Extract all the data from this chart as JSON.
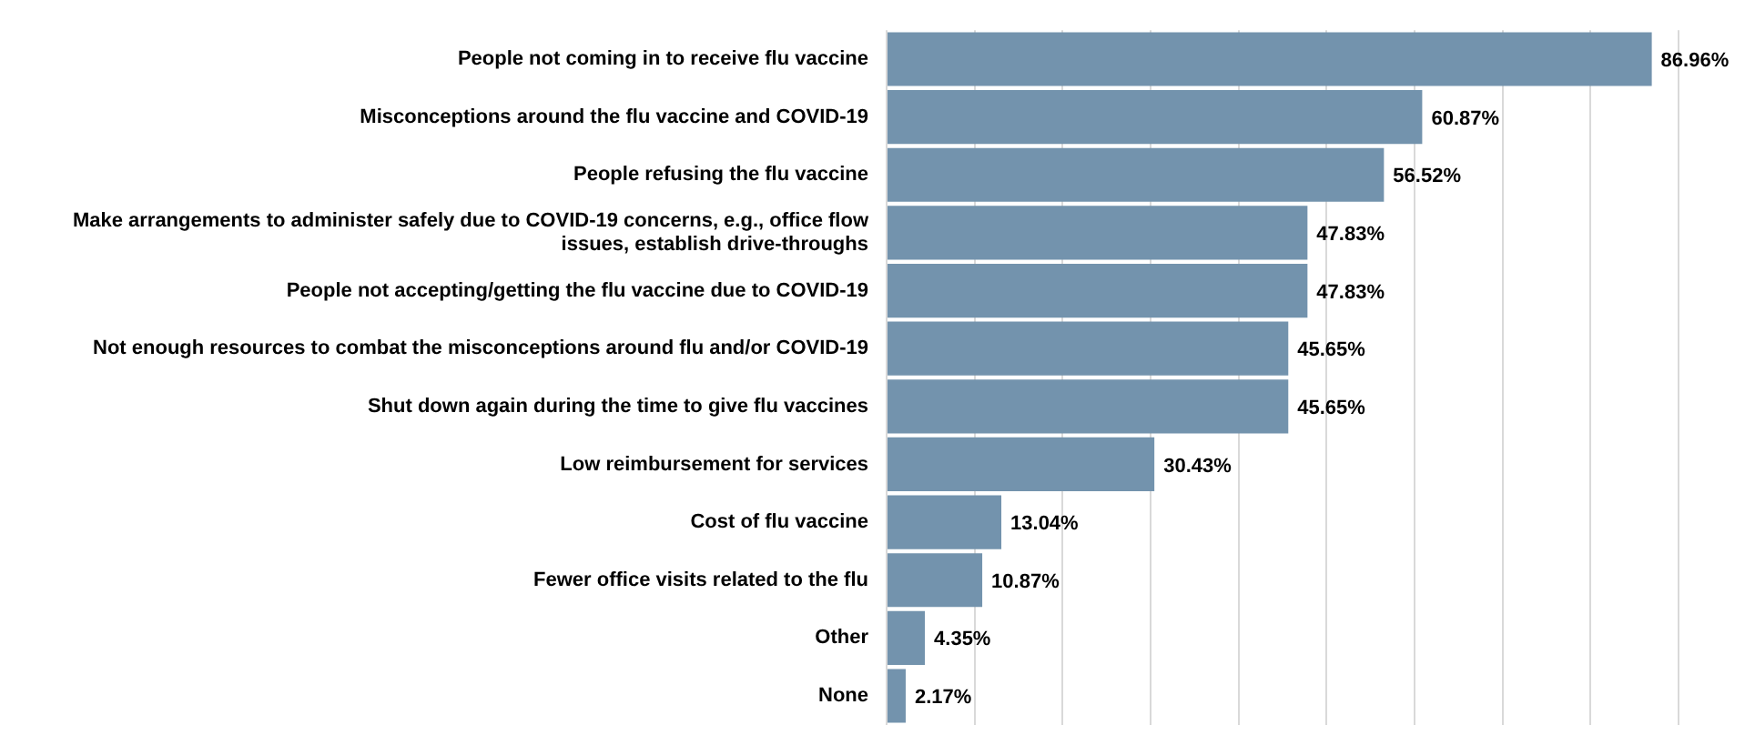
{
  "chart_data": {
    "type": "bar",
    "orientation": "horizontal",
    "categories": [
      "People not coming in to receive flu vaccine",
      "Misconceptions around the flu vaccine and COVID-19",
      "People refusing the flu vaccine",
      "Make arrangements to administer safely due to COVID-19 concerns, e.g., office flow issues, establish drive-throughs",
      "People not accepting/getting the flu vaccine due to COVID-19",
      "Not enough resources to combat the misconceptions around flu and/or COVID-19",
      "Shut down again during the time to give flu vaccines",
      "Low reimbursement for services",
      "Cost of flu vaccine",
      "Fewer office visits related to the flu",
      "Other",
      "None"
    ],
    "values": [
      86.96,
      60.87,
      56.52,
      47.83,
      47.83,
      45.65,
      45.65,
      30.43,
      13.04,
      10.87,
      4.35,
      2.17
    ],
    "value_labels": [
      "86.96%",
      "60.87%",
      "56.52%",
      "47.83%",
      "47.83%",
      "45.65%",
      "45.65%",
      "30.43%",
      "13.04%",
      "10.87%",
      "4.35%",
      "2.17%"
    ],
    "color": "#7393ad",
    "xlim": [
      0,
      90
    ],
    "xticks": [
      {
        "value": 0,
        "label": null
      },
      {
        "value": 10,
        "label": null
      },
      {
        "value": 20,
        "label": null
      },
      {
        "value": 30,
        "label": null
      },
      {
        "value": 40,
        "label": null
      },
      {
        "value": 50,
        "label": null
      },
      {
        "value": 60,
        "label": null
      },
      {
        "value": 70,
        "label": null
      },
      {
        "value": 80,
        "label": null
      },
      {
        "value": 90,
        "label": null
      }
    ],
    "grid": "x",
    "tick_labels": "y"
  }
}
